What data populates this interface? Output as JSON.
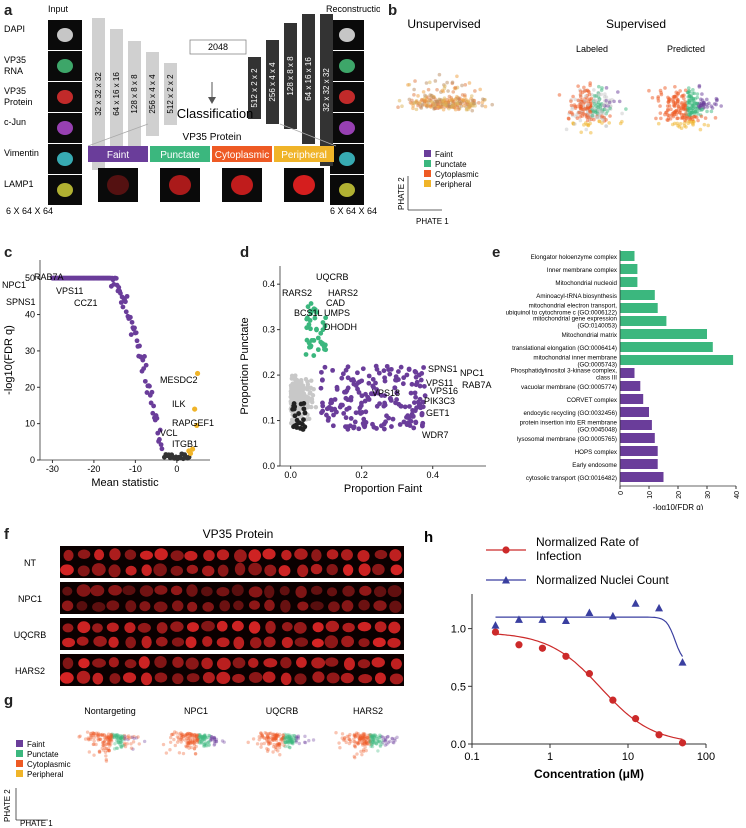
{
  "colors": {
    "faint": "#6A3D9A",
    "punctate": "#3BB77E",
    "cytoplasmic": "#EE5A24",
    "peripheral": "#F0B429",
    "gray": "#c8c8c8",
    "black": "#222222",
    "red_curve": "#cc2a2a",
    "blue_curve": "#3a3fa0"
  },
  "panel_a": {
    "label": "a",
    "input_title": "Input",
    "recon_title": "Reconstruction",
    "channels": [
      "DAPI",
      "VP35\nRNA",
      "VP35\nProtein",
      "c-Jun",
      "Vimentin",
      "LAMP1"
    ],
    "encoder_layers": [
      "32 x 32 x 32",
      "64 x 16 x 16",
      "128 x 8 x 8",
      "256 x 4 x 4",
      "512 x 2 x 2"
    ],
    "decoder_layers": [
      "512 x 2 x 2",
      "256 x 4 x 4",
      "128 x 8 x 8",
      "64 x 16 x 16",
      "32 x 32 x 32"
    ],
    "latent": "2048",
    "classification": "Classification",
    "protein_title": "VP35 Protein",
    "classes": [
      "Faint",
      "Punctate",
      "Cytoplasmic",
      "Peripheral"
    ],
    "input_dims": "6 X 64 X 64",
    "output_dims": "6 X 64 X 64"
  },
  "panel_b": {
    "label": "b",
    "unsupervised": "Unsupervised",
    "supervised": "Supervised",
    "labeled": "Labeled",
    "predicted": "Predicted",
    "legend": [
      "Faint",
      "Punctate",
      "Cytoplasmic",
      "Peripheral"
    ],
    "axis_x": "PHATE 1",
    "axis_y": "PHATE 2"
  },
  "panel_c": {
    "label": "c",
    "xlabel": "Mean statistic",
    "ylabel": "-log10(FDR q)",
    "xticks": [
      "-30",
      "-20",
      "-10",
      "0"
    ],
    "yticks": [
      "0",
      "10",
      "20",
      "30",
      "40",
      "50"
    ],
    "gene_labels": [
      "NPC1",
      "RAB7A",
      "VPS11",
      "SPNS1",
      "CCZ1",
      "MESDC2",
      "ILK",
      "RAPGEF1",
      "VCL",
      "ITGB1"
    ]
  },
  "panel_d": {
    "label": "d",
    "xlabel": "Proportion Faint",
    "ylabel": "Proportion Punctate",
    "xticks": [
      "0.0",
      "0.2",
      "0.4"
    ],
    "yticks": [
      "0.0",
      "0.1",
      "0.2",
      "0.3",
      "0.4"
    ],
    "gene_labels": [
      "UQCRB",
      "RARS2",
      "HARS2",
      "CAD",
      "BCS1L",
      "UMPS",
      "DHODH",
      "SPNS1",
      "NPC1",
      "VPS11",
      "RAB7A",
      "VPS18",
      "VPS16",
      "PIK3C3",
      "GET1",
      "WDR7"
    ]
  },
  "panel_e": {
    "label": "e",
    "xlabel": "-log10(FDR q)",
    "xticks": [
      "0",
      "10",
      "20",
      "30",
      "40"
    ],
    "terms": [
      "Elongator holoenzyme complex",
      "Inner membrane complex",
      "Mitochondrial nucleoid",
      "Aminoacyl-tRNA biosynthesis",
      "mitochondrial electron transport,\nubiquinol to cytochrome c (GO:0006122)",
      "mitochondrial gene expression\n(GO:0140053)",
      "Mitochondrial matrix",
      "translational elongation (GO:0006414)",
      "mitochondrial inner membrane\n(GO:0005743)",
      "Phosphatidylinositol 3-kinase complex,\nclass III",
      "vacuolar membrane (GO:0005774)",
      "CORVET complex",
      "endocytic recycling (GO:0032456)",
      "protein insertion into ER membrane\n(GO:0045048)",
      "lysosomal membrane (GO:0005765)",
      "HOPS complex",
      "Early endosome",
      "cytosolic transport (GO:0016482)"
    ]
  },
  "panel_f": {
    "label": "f",
    "title": "VP35 Protein",
    "rows": [
      "NT",
      "NPC1",
      "UQCRB",
      "HARS2"
    ]
  },
  "panel_g": {
    "label": "g",
    "titles": [
      "Nontargeting",
      "NPC1",
      "UQCRB",
      "HARS2"
    ],
    "legend": [
      "Faint",
      "Punctate",
      "Cytoplasmic",
      "Peripheral"
    ],
    "axis_x": "PHATE 1",
    "axis_y": "PHATE 2"
  },
  "chart_data": [
    {
      "type": "bar",
      "title": "",
      "orientation": "horizontal",
      "xlabel": "-log10(FDR q)",
      "xlim": [
        0,
        40
      ],
      "categories": [
        "Elongator holoenzyme complex",
        "Inner membrane complex",
        "Mitochondrial nucleoid",
        "Aminoacyl-tRNA biosynthesis",
        "mitochondrial electron transport, ubiquinol to cytochrome c (GO:0006122)",
        "mitochondrial gene expression (GO:0140053)",
        "Mitochondrial matrix",
        "translational elongation (GO:0006414)",
        "mitochondrial inner membrane (GO:0005743)",
        "Phosphatidylinositol 3-kinase complex, class III",
        "vacuolar membrane (GO:0005774)",
        "CORVET complex",
        "endocytic recycling (GO:0032456)",
        "protein insertion into ER membrane (GO:0045048)",
        "lysosomal membrane (GO:0005765)",
        "HOPS complex",
        "Early endosome",
        "cytosolic transport (GO:0016482)"
      ],
      "values": [
        5,
        6,
        6,
        12,
        13,
        16,
        30,
        32,
        39,
        5,
        7,
        8,
        10,
        11,
        12,
        13,
        13,
        15
      ],
      "bar_groups": [
        "punctate",
        "punctate",
        "punctate",
        "punctate",
        "punctate",
        "punctate",
        "punctate",
        "punctate",
        "punctate",
        "faint",
        "faint",
        "faint",
        "faint",
        "faint",
        "faint",
        "faint",
        "faint",
        "faint"
      ]
    },
    {
      "type": "line",
      "xlabel": "Concentration (μM)",
      "ylabel": "",
      "xscale": "log",
      "xlim": [
        0.1,
        100
      ],
      "ylim": [
        0,
        1.3
      ],
      "xticks": [
        "0.1",
        "1",
        "10",
        "100"
      ],
      "yticks": [
        "0.0",
        "0.5",
        "1.0"
      ],
      "series": [
        {
          "name": "Normalized Rate of Infection",
          "marker": "circle",
          "x": [
            0.2,
            0.4,
            0.8,
            1.6,
            3.2,
            6.4,
            12.5,
            25,
            50
          ],
          "y": [
            0.97,
            0.86,
            0.83,
            0.76,
            0.61,
            0.38,
            0.22,
            0.08,
            0.01
          ]
        },
        {
          "name": "Normalized Nuclei Count",
          "marker": "triangle",
          "x": [
            0.2,
            0.4,
            0.8,
            1.6,
            3.2,
            6.4,
            12.5,
            25,
            50
          ],
          "y": [
            1.03,
            1.08,
            1.08,
            1.07,
            1.14,
            1.11,
            1.22,
            1.18,
            0.71
          ]
        }
      ],
      "panel_label": "h"
    }
  ]
}
